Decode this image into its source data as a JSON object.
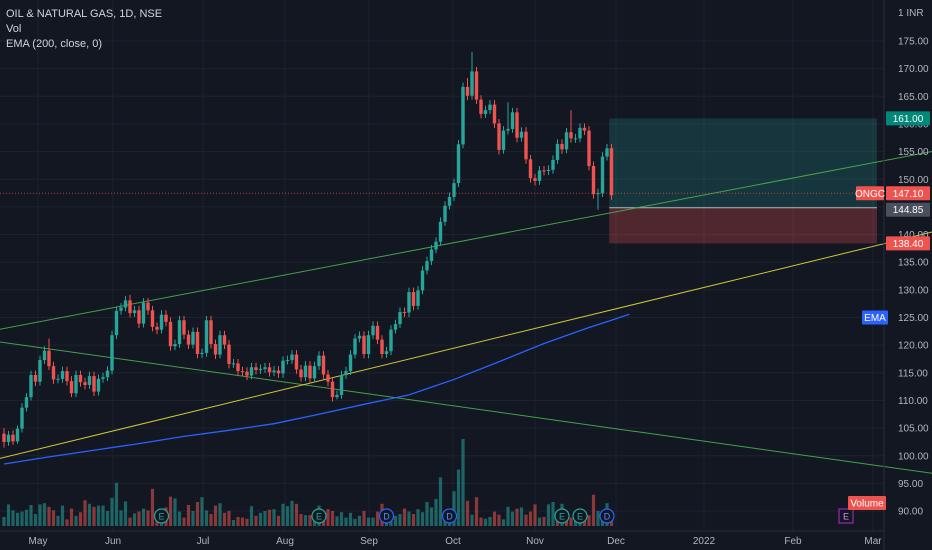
{
  "legend": {
    "symbol_line": "OIL & NATURAL GAS, 1D, NSE",
    "vol_line": "Vol",
    "ema_line": "EMA (200, close, 0)"
  },
  "colors": {
    "background": "#131722",
    "up": "#26a69a",
    "down": "#ef5350",
    "ema": "#2962ff",
    "trend_green": "#4caf50",
    "trend_yellow": "#e6d93a",
    "target_zone": "#26a69a",
    "stop_zone": "#ef5350",
    "axis_text": "#b2b5be"
  },
  "chart_data": {
    "type": "candlestick",
    "y_axis": {
      "unit_label": "1 INR",
      "ticks": [
        "175.00",
        "170.00",
        "165.00",
        "160.00",
        "155.00",
        "150.00",
        "145.00",
        "140.00",
        "135.00",
        "130.00",
        "125.00",
        "120.00",
        "115.00",
        "110.00",
        "105.00",
        "100.00",
        "95.00",
        "90.00"
      ],
      "range": [
        88,
        178
      ]
    },
    "x_axis": {
      "ticks": [
        "May",
        "Jun",
        "Jul",
        "Aug",
        "Sep",
        "Oct",
        "Nov",
        "Dec",
        "2022",
        "Feb",
        "Mar"
      ]
    },
    "candles": [
      [
        104,
        102.5,
        105,
        101.5
      ],
      [
        102.5,
        103.8,
        104.5,
        101.8
      ],
      [
        103.8,
        102.6,
        104.6,
        102
      ],
      [
        102.6,
        104.9,
        105.5,
        102.2
      ],
      [
        104.9,
        108.7,
        109.5,
        104.2
      ],
      [
        108.7,
        110.6,
        111.3,
        108
      ],
      [
        110.6,
        114.6,
        115.4,
        110
      ],
      [
        114.6,
        113.4,
        115.4,
        112.6
      ],
      [
        113.4,
        117.3,
        118.1,
        112.7
      ],
      [
        117.3,
        119,
        119.8,
        116.6
      ],
      [
        119,
        116.2,
        121.2,
        115.5
      ],
      [
        116.2,
        113.8,
        117,
        113
      ],
      [
        113.8,
        113.9,
        114.7,
        113.1
      ],
      [
        113.9,
        115.3,
        116.1,
        113.2
      ],
      [
        115.3,
        113.5,
        116.1,
        112.7
      ],
      [
        113.5,
        111.3,
        114.4,
        110.6
      ],
      [
        111.3,
        114.6,
        115.4,
        110.6
      ],
      [
        114.6,
        113.3,
        115.4,
        112.5
      ],
      [
        113.3,
        112.8,
        114.1,
        112
      ],
      [
        112.8,
        114.4,
        115.2,
        112.1
      ],
      [
        114.4,
        111.6,
        115.2,
        110.8
      ],
      [
        111.6,
        113.9,
        114.7,
        110.9
      ],
      [
        113.9,
        114.2,
        115,
        113.2
      ],
      [
        114.2,
        115.4,
        116.2,
        113.5
      ],
      [
        115.4,
        121.8,
        122.6,
        114.7
      ],
      [
        121.8,
        126.2,
        127,
        121.1
      ],
      [
        126.2,
        126.8,
        127.6,
        125.5
      ],
      [
        126.8,
        128.1,
        128.9,
        126.1
      ],
      [
        128.1,
        125.8,
        129.1,
        125
      ],
      [
        125.8,
        126.3,
        127.1,
        125.1
      ],
      [
        126.3,
        123.9,
        127.1,
        123.1
      ],
      [
        123.9,
        127.7,
        128.5,
        123.2
      ],
      [
        127.7,
        126.3,
        128.5,
        125.5
      ],
      [
        126.3,
        123.3,
        127.1,
        122.5
      ],
      [
        123.3,
        122.8,
        124.1,
        122
      ],
      [
        122.8,
        125.5,
        126.3,
        122.1
      ],
      [
        125.5,
        124.2,
        126.3,
        123.4
      ],
      [
        124.2,
        119.8,
        125,
        119
      ],
      [
        119.8,
        120.2,
        121,
        119.1
      ],
      [
        120.2,
        124.5,
        125.3,
        119.5
      ],
      [
        124.5,
        121.9,
        125.3,
        121.1
      ],
      [
        121.9,
        120.1,
        122.7,
        119.3
      ],
      [
        120.1,
        122.4,
        123.2,
        119.4
      ],
      [
        122.4,
        118.4,
        123.2,
        117.6
      ],
      [
        118.4,
        118.6,
        119.4,
        117.7
      ],
      [
        118.6,
        124.5,
        125.3,
        117.9
      ],
      [
        124.5,
        120.2,
        125.3,
        119.4
      ],
      [
        120.2,
        118.3,
        121,
        117.5
      ],
      [
        118.3,
        121.8,
        122.6,
        117.6
      ],
      [
        121.8,
        120.1,
        122.6,
        119.3
      ],
      [
        120.1,
        116.6,
        120.9,
        115.8
      ],
      [
        116.6,
        116.7,
        117.5,
        115.9
      ],
      [
        116.7,
        115.3,
        117.5,
        114.5
      ],
      [
        115.3,
        115.2,
        116.1,
        114.4
      ],
      [
        115.2,
        114.5,
        116,
        113.7
      ],
      [
        114.5,
        116,
        116.8,
        113.8
      ],
      [
        116,
        115.5,
        116.8,
        114.7
      ],
      [
        115.5,
        115.7,
        116.5,
        114.8
      ],
      [
        115.7,
        116,
        116.8,
        115
      ],
      [
        116,
        115.1,
        116.8,
        114.3
      ],
      [
        115.1,
        115.4,
        116.2,
        114.4
      ],
      [
        115.4,
        114.9,
        116.2,
        114.1
      ],
      [
        114.9,
        117.2,
        118,
        114.1
      ],
      [
        117.2,
        117.3,
        118.1,
        116.5
      ],
      [
        117.3,
        118.3,
        119.1,
        116.6
      ],
      [
        118.3,
        115.6,
        119.1,
        114.8
      ],
      [
        115.6,
        114.2,
        116.4,
        113.4
      ],
      [
        114.2,
        116.3,
        117.1,
        113.5
      ],
      [
        116.3,
        114,
        117.1,
        113.2
      ],
      [
        114,
        116.2,
        117,
        113.3
      ],
      [
        116.2,
        118.1,
        118.9,
        115.5
      ],
      [
        118.1,
        114.7,
        118.9,
        113.9
      ],
      [
        114.7,
        113.4,
        115.5,
        112.6
      ],
      [
        113.4,
        110.6,
        114.2,
        109.8
      ],
      [
        110.6,
        111,
        111.8,
        110.2
      ],
      [
        111,
        114.6,
        115.4,
        110.3
      ],
      [
        114.6,
        115.3,
        116.1,
        113.9
      ],
      [
        115.3,
        118.3,
        119.1,
        114.6
      ],
      [
        118.3,
        121.2,
        122,
        117.6
      ],
      [
        121.2,
        121.7,
        122.5,
        120.5
      ],
      [
        121.7,
        118.4,
        122.5,
        117.6
      ],
      [
        118.4,
        121.8,
        122.6,
        117.6
      ],
      [
        121.8,
        123.5,
        124.3,
        121.1
      ],
      [
        123.5,
        121,
        124.3,
        120.2
      ],
      [
        121,
        118.4,
        121.8,
        117.6
      ],
      [
        118.4,
        118.9,
        119.7,
        117.7
      ],
      [
        118.9,
        122.8,
        123.6,
        118.2
      ],
      [
        122.8,
        123.8,
        124.6,
        122.1
      ],
      [
        123.8,
        126,
        126.8,
        123.1
      ],
      [
        126,
        125.9,
        126.8,
        125.1
      ],
      [
        125.9,
        129.6,
        130.4,
        125.1
      ],
      [
        129.6,
        127.1,
        130.4,
        126.3
      ],
      [
        127.1,
        129.9,
        130.7,
        126.4
      ],
      [
        129.9,
        133.5,
        134.3,
        129.2
      ],
      [
        133.5,
        135.2,
        136,
        132.8
      ],
      [
        135.2,
        137.3,
        138.1,
        134.5
      ],
      [
        137.3,
        138.7,
        139.5,
        136.6
      ],
      [
        138.7,
        142.3,
        143.1,
        138
      ],
      [
        142.3,
        145.2,
        146,
        141.6
      ],
      [
        145.2,
        146.8,
        147.6,
        144.5
      ],
      [
        146.8,
        149.3,
        150.1,
        146.1
      ],
      [
        149.3,
        156.3,
        157.1,
        148.6
      ],
      [
        156.3,
        166.7,
        167.5,
        155.6
      ],
      [
        166.7,
        165.1,
        168.3,
        164.3
      ],
      [
        165.1,
        169.5,
        173,
        164.4
      ],
      [
        169.5,
        164.4,
        170.3,
        163.6
      ],
      [
        164.4,
        161.8,
        165.2,
        161
      ],
      [
        161.8,
        162.5,
        163.3,
        161.1
      ],
      [
        162.5,
        163.5,
        164.3,
        161.8
      ],
      [
        163.5,
        160.1,
        164.3,
        159.3
      ],
      [
        160.1,
        155.3,
        160.9,
        154.5
      ],
      [
        155.3,
        158.8,
        159.6,
        154.6
      ],
      [
        158.8,
        159.1,
        163.9,
        158.1
      ],
      [
        159.1,
        162.1,
        162.9,
        158.4
      ],
      [
        162.1,
        157.5,
        162.9,
        156.7
      ],
      [
        157.5,
        158.6,
        159.4,
        156.8
      ],
      [
        158.6,
        153.6,
        159.4,
        152.8
      ],
      [
        153.6,
        150.2,
        154.4,
        149.4
      ],
      [
        150.2,
        149.7,
        151,
        148.9
      ],
      [
        149.7,
        151.6,
        152.4,
        149
      ],
      [
        151.6,
        151.5,
        152.4,
        150.7
      ],
      [
        151.5,
        151.7,
        152.5,
        150.8
      ],
      [
        151.7,
        153.5,
        154.3,
        151
      ],
      [
        153.5,
        156.4,
        157.2,
        152.8
      ],
      [
        156.4,
        155.4,
        157.2,
        154.6
      ],
      [
        155.4,
        158.5,
        159.3,
        154.7
      ],
      [
        158.5,
        157.4,
        162.5,
        156.6
      ],
      [
        157.4,
        157.4,
        158.2,
        156.6
      ],
      [
        157.4,
        159.3,
        160.1,
        156.7
      ],
      [
        159.3,
        158.8,
        160.1,
        158
      ],
      [
        158.8,
        152.4,
        159.6,
        151.6
      ],
      [
        152.4,
        147.3,
        153.2,
        146.5
      ],
      [
        147.3,
        147.5,
        148.3,
        144.5
      ],
      [
        147.5,
        154.1,
        154.9,
        146.8
      ],
      [
        154.1,
        155.6,
        156.4,
        153.4
      ],
      [
        155.6,
        147.1,
        156.4,
        146.3
      ]
    ],
    "volume": [
      15,
      36,
      26,
      22,
      24,
      27,
      35,
      20,
      36,
      38,
      32,
      26,
      17,
      34,
      11,
      29,
      17,
      23,
      43,
      37,
      32,
      34,
      34,
      25,
      47,
      72,
      26,
      41,
      14,
      21,
      24,
      29,
      26,
      62,
      19,
      15,
      31,
      49,
      46,
      24,
      14,
      35,
      25,
      40,
      48,
      26,
      20,
      34,
      38,
      22,
      25,
      10,
      15,
      14,
      12,
      33,
      17,
      22,
      25,
      27,
      28,
      17,
      37,
      33,
      42,
      37,
      20,
      18,
      18,
      21,
      34,
      18,
      28,
      25,
      16,
      23,
      14,
      22,
      12,
      17,
      25,
      14,
      14,
      24,
      37,
      20,
      19,
      17,
      20,
      29,
      24,
      20,
      28,
      23,
      40,
      31,
      45,
      81,
      16,
      28,
      58,
      94,
      145,
      42,
      19,
      48,
      14,
      12,
      15,
      24,
      19,
      11,
      32,
      24,
      29,
      31,
      19,
      24,
      36,
      14,
      15,
      36,
      40,
      20,
      37,
      14,
      14,
      22,
      20,
      14,
      18,
      52,
      25,
      12,
      38,
      18
    ],
    "volume_up": [
      1,
      1,
      1,
      1,
      1,
      1,
      1,
      1,
      1,
      1,
      0,
      0,
      1,
      1,
      0,
      0,
      1,
      0,
      0,
      1,
      0,
      1,
      1,
      1,
      1,
      1,
      1,
      1,
      0,
      1,
      0,
      1,
      0,
      0,
      0,
      1,
      0,
      0,
      1,
      1,
      0,
      0,
      1,
      0,
      1,
      1,
      0,
      0,
      1,
      0,
      0,
      1,
      0,
      0,
      0,
      1,
      0,
      1,
      1,
      0,
      1,
      0,
      1,
      1,
      1,
      0,
      0,
      1,
      0,
      1,
      1,
      0,
      0,
      0,
      1,
      1,
      1,
      1,
      1,
      1,
      0,
      1,
      1,
      0,
      0,
      1,
      1,
      1,
      1,
      0,
      1,
      0,
      1,
      1,
      1,
      1,
      1,
      1,
      1,
      1,
      1,
      1,
      1,
      0,
      1,
      0,
      0,
      1,
      1,
      0,
      0,
      1,
      1,
      1,
      0,
      1,
      0,
      0,
      0,
      1,
      0,
      1,
      1,
      0,
      1,
      0,
      0,
      1,
      1,
      0,
      0,
      0,
      1,
      1,
      1,
      0
    ],
    "ema_points": [
      [
        0,
        98.5
      ],
      [
        10,
        99.8
      ],
      [
        20,
        101
      ],
      [
        30,
        102.2
      ],
      [
        40,
        103.5
      ],
      [
        50,
        104.6
      ],
      [
        60,
        105.8
      ],
      [
        70,
        107.5
      ],
      [
        80,
        109.3
      ],
      [
        90,
        111
      ],
      [
        100,
        113.8
      ],
      [
        110,
        117
      ],
      [
        120,
        120.3
      ],
      [
        130,
        123.2
      ],
      [
        135,
        124.5
      ],
      [
        139,
        125.6
      ]
    ],
    "trendlines": [
      {
        "color": "green",
        "from": [
          -2,
          122.7
        ],
        "to": [
          210,
          155.6
        ]
      },
      {
        "color": "green",
        "from": [
          -2,
          120.7
        ],
        "to": [
          210,
          96.4
        ]
      },
      {
        "color": "yellow",
        "from": [
          -2,
          99.3
        ],
        "to": [
          210,
          141.2
        ]
      }
    ],
    "position": {
      "entry": 144.85,
      "target": 161.0,
      "stop": 138.4,
      "start_index": 134.5,
      "end_index": 194
    },
    "price_tags": {
      "target": "161.00",
      "last_symbol": "ONGC",
      "last_price": "147.10",
      "entry": "144.85",
      "stop": "138.40",
      "ema": "EMA",
      "volume": "Volume"
    },
    "events": [
      {
        "type": "E",
        "index": 35
      },
      {
        "type": "E",
        "index": 70
      },
      {
        "type": "D",
        "index": 85
      },
      {
        "type": "D",
        "index": 99
      },
      {
        "type": "E",
        "index": 124
      },
      {
        "type": "E",
        "index": 128
      },
      {
        "type": "D",
        "index": 134
      }
    ],
    "event_future": {
      "type": "E",
      "label": "E"
    }
  }
}
